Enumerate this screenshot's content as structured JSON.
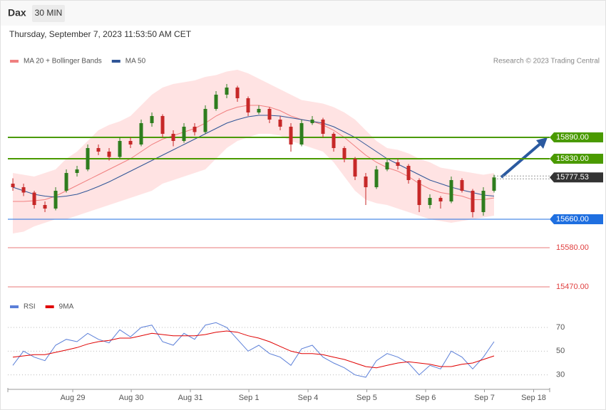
{
  "header": {
    "title": "Dax",
    "interval": "30 MIN",
    "timestamp": "Thursday, September 7, 2023 11:53:50 AM CET"
  },
  "chart_data": [
    {
      "type": "candlestick",
      "annotation": "Research © 2023 Trading Central",
      "up_color": "#2e7d1e",
      "down_color": "#c62828",
      "xlim": [
        -0.47,
        50.2
      ],
      "ylim": [
        15446,
        16086
      ],
      "xticks": [
        {
          "value": 5.6,
          "label": "Aug 29"
        },
        {
          "value": 11.07,
          "label": "Aug 30"
        },
        {
          "value": 16.6,
          "label": "Aug 31"
        },
        {
          "value": 22.07,
          "label": "Sep 1"
        },
        {
          "value": 27.6,
          "label": "Sep 4"
        },
        {
          "value": 33.1,
          "label": "Sep 5"
        },
        {
          "value": 38.6,
          "label": "Sep 6"
        },
        {
          "value": 44.1,
          "label": "Sep 7"
        },
        {
          "value": 48.7,
          "label": "Sep 18"
        }
      ],
      "candles": [
        [
          15760,
          15775,
          15740,
          15750
        ],
        [
          15750,
          15760,
          15725,
          15735
        ],
        [
          15735,
          15740,
          15690,
          15700
        ],
        [
          15700,
          15710,
          15680,
          15690
        ],
        [
          15690,
          15750,
          15685,
          15740
        ],
        [
          15740,
          15800,
          15735,
          15790
        ],
        [
          15790,
          15810,
          15780,
          15800
        ],
        [
          15800,
          15870,
          15795,
          15860
        ],
        [
          15860,
          15870,
          15840,
          15850
        ],
        [
          15850,
          15860,
          15825,
          15835
        ],
        [
          15835,
          15890,
          15830,
          15880
        ],
        [
          15880,
          15890,
          15860,
          15870
        ],
        [
          15870,
          15940,
          15865,
          15930
        ],
        [
          15930,
          15960,
          15920,
          15950
        ],
        [
          15950,
          15955,
          15890,
          15900
        ],
        [
          15900,
          15910,
          15865,
          15880
        ],
        [
          15880,
          15930,
          15875,
          15920
        ],
        [
          15920,
          15930,
          15895,
          15905
        ],
        [
          15905,
          15980,
          15900,
          15970
        ],
        [
          15970,
          16020,
          15965,
          16010
        ],
        [
          16010,
          16040,
          16000,
          16030
        ],
        [
          16030,
          16035,
          15990,
          16000
        ],
        [
          16000,
          16005,
          15950,
          15960
        ],
        [
          15960,
          15980,
          15955,
          15970
        ],
        [
          15970,
          15975,
          15930,
          15940
        ],
        [
          15940,
          15950,
          15910,
          15920
        ],
        [
          15920,
          15930,
          15850,
          15870
        ],
        [
          15870,
          15940,
          15865,
          15930
        ],
        [
          15930,
          15950,
          15925,
          15940
        ],
        [
          15940,
          15945,
          15890,
          15900
        ],
        [
          15900,
          15905,
          15850,
          15860
        ],
        [
          15860,
          15865,
          15820,
          15830
        ],
        [
          15830,
          15835,
          15770,
          15780
        ],
        [
          15780,
          15790,
          15700,
          15750
        ],
        [
          15750,
          15810,
          15745,
          15800
        ],
        [
          15800,
          15830,
          15795,
          15820
        ],
        [
          15820,
          15830,
          15800,
          15810
        ],
        [
          15810,
          15815,
          15760,
          15770
        ],
        [
          15770,
          15775,
          15680,
          15700
        ],
        [
          15700,
          15730,
          15690,
          15720
        ],
        [
          15720,
          15725,
          15690,
          15710
        ],
        [
          15710,
          15780,
          15705,
          15770
        ],
        [
          15770,
          15775,
          15735,
          15740
        ],
        [
          15740,
          15745,
          15665,
          15680
        ],
        [
          15680,
          15750,
          15670,
          15740
        ],
        [
          15740,
          15785,
          15735,
          15777.53
        ]
      ],
      "series": [
        {
          "name": "MA 20 + Bollinger Bands",
          "color": "#f08080",
          "band_color": "#ffdcdc",
          "values": [
            15710,
            15710,
            15712,
            15715,
            15725,
            15740,
            15755,
            15770,
            15785,
            15800,
            15815,
            15830,
            15850,
            15870,
            15885,
            15895,
            15905,
            15915,
            15930,
            15950,
            15965,
            15975,
            15980,
            15980,
            15975,
            15965,
            15950,
            15940,
            15935,
            15925,
            15910,
            15890,
            15865,
            15840,
            15820,
            15805,
            15795,
            15780,
            15760,
            15745,
            15735,
            15730,
            15725,
            15715,
            15715,
            15720
          ],
          "upper": [
            15790,
            15785,
            15780,
            15790,
            15800,
            15830,
            15850,
            15880,
            15910,
            15925,
            15935,
            15950,
            15980,
            16010,
            16030,
            16040,
            16045,
            16050,
            16060,
            16065,
            16075,
            16080,
            16070,
            16055,
            16040,
            16025,
            16010,
            15995,
            15990,
            15985,
            15975,
            15960,
            15940,
            15910,
            15880,
            15860,
            15855,
            15845,
            15830,
            15820,
            15805,
            15800,
            15795,
            15790,
            15785,
            15790
          ],
          "lower": [
            15620,
            15625,
            15640,
            15650,
            15660,
            15660,
            15670,
            15680,
            15690,
            15700,
            15710,
            15720,
            15730,
            15740,
            15760,
            15770,
            15780,
            15790,
            15800,
            15830,
            15860,
            15880,
            15890,
            15900,
            15900,
            15895,
            15880,
            15870,
            15860,
            15850,
            15820,
            15780,
            15740,
            15715,
            15705,
            15700,
            15690,
            15680,
            15670,
            15660,
            15655,
            15650,
            15655,
            15660,
            15665,
            15670
          ]
        },
        {
          "name": "MA 50",
          "color": "#2f5597",
          "values": [
            15750,
            15740,
            15730,
            15725,
            15722,
            15725,
            15730,
            15740,
            15752,
            15765,
            15780,
            15795,
            15810,
            15825,
            15840,
            15855,
            15870,
            15885,
            15900,
            15915,
            15930,
            15940,
            15948,
            15952,
            15952,
            15950,
            15945,
            15940,
            15935,
            15930,
            15920,
            15905,
            15890,
            15870,
            15850,
            15830,
            15815,
            15800,
            15785,
            15770,
            15760,
            15750,
            15742,
            15735,
            15728,
            15725
          ]
        }
      ],
      "levels": [
        {
          "value": 15890,
          "label": "15890.00",
          "color": "#4a9a00",
          "kind": "box"
        },
        {
          "value": 15830,
          "label": "15830.00",
          "color": "#4a9a00",
          "kind": "box"
        },
        {
          "value": 15777.53,
          "color": "#333333",
          "kind": "current"
        },
        {
          "value": 15660,
          "label": "15660.00",
          "color": "#1f6fe0",
          "kind": "box"
        },
        {
          "value": 15580,
          "label": "15580.00",
          "color": "#e04040",
          "kind": "text"
        },
        {
          "value": 15470,
          "label": "15470.00",
          "color": "#e04040",
          "kind": "text"
        }
      ]
    },
    {
      "type": "line",
      "xlim": [
        -0.47,
        50.2
      ],
      "ylim": [
        19,
        82
      ],
      "yticks": [
        70,
        50,
        30
      ],
      "series": [
        {
          "name": "RSI",
          "color": "#5b7fd8",
          "values": [
            38,
            50,
            45,
            42,
            55,
            60,
            58,
            65,
            60,
            57,
            68,
            62,
            70,
            72,
            58,
            55,
            65,
            60,
            72,
            74,
            70,
            60,
            50,
            55,
            48,
            45,
            38,
            52,
            55,
            45,
            40,
            36,
            30,
            28,
            42,
            48,
            45,
            40,
            30,
            38,
            35,
            50,
            45,
            35,
            45,
            58
          ]
        },
        {
          "name": "9MA",
          "color": "#e00000",
          "values": [
            45,
            46,
            47,
            47,
            49,
            51,
            53,
            56,
            58,
            59,
            61,
            61,
            63,
            65,
            64,
            63,
            63,
            63,
            64,
            66,
            67,
            66,
            63,
            61,
            58,
            54,
            50,
            48,
            48,
            47,
            45,
            43,
            40,
            37,
            36,
            38,
            40,
            41,
            40,
            39,
            37,
            37,
            39,
            40,
            43,
            46
          ]
        }
      ]
    }
  ]
}
